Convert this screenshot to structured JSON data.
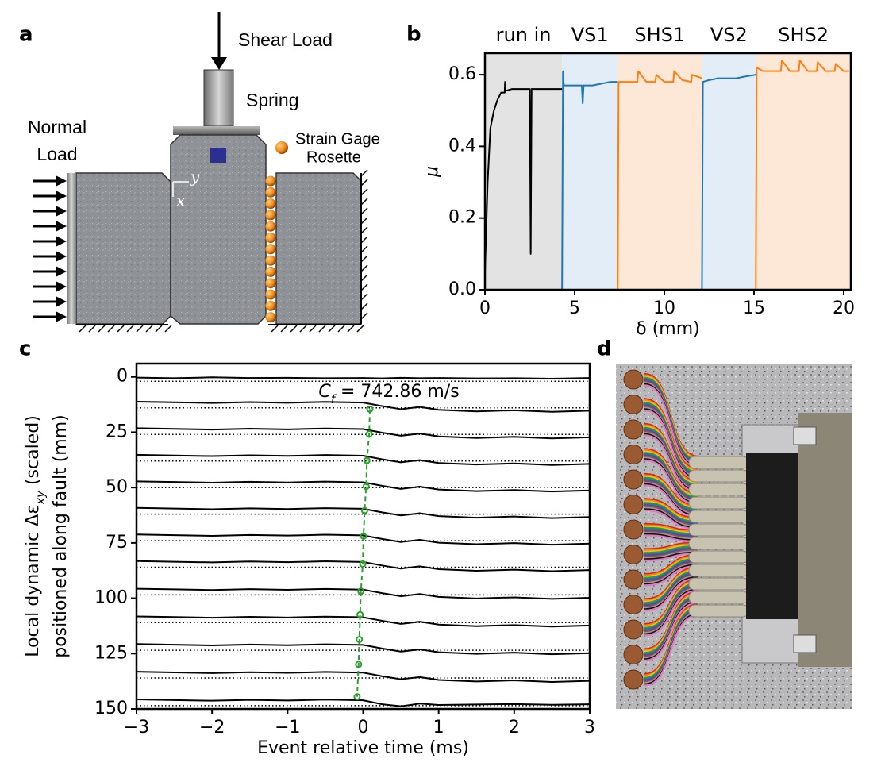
{
  "panel_labels": [
    "a",
    "b",
    "c",
    "d"
  ],
  "diagram": {
    "shear_load": "Shear Load",
    "spring": "Spring",
    "normal_load": [
      "Normal",
      "Load"
    ],
    "strain_gage": [
      "Strain Gage",
      "Rosette"
    ],
    "axis_y": "y",
    "axis_x": "x"
  },
  "chart_data": [
    {
      "type": "line",
      "xlabel": "δ (mm)",
      "ylabel": "μ",
      "xlim": [
        0,
        20.4
      ],
      "ylim": [
        0,
        0.66
      ],
      "xticks": [
        0,
        5,
        10,
        15,
        20
      ],
      "yticks": [
        {
          "value": 0,
          "label": "0.0"
        },
        0.2,
        0.4,
        0.6
      ],
      "regions": [
        {
          "name": "run in",
          "start": 0,
          "end": 4.3,
          "color": "#e3e3e3",
          "text_color": "#000000"
        },
        {
          "name": "VS1",
          "start": 4.3,
          "end": 7.4,
          "color": "#e3edf7",
          "text_color": "#1f77b4"
        },
        {
          "name": "SHS1",
          "start": 7.4,
          "end": 12.1,
          "color": "#fde8d7",
          "text_color": "#ff7f0e"
        },
        {
          "name": "VS2",
          "start": 12.1,
          "end": 15.1,
          "color": "#e3edf7",
          "text_color": "#1f77b4"
        },
        {
          "name": "SHS2",
          "start": 15.1,
          "end": 20.4,
          "color": "#fde8d7",
          "text_color": "#ff7f0e"
        }
      ],
      "series": [
        {
          "color": "#000000",
          "x": [
            0,
            0.15,
            0.3,
            0.5,
            0.7,
            0.9,
            1.1,
            1.12,
            1.15,
            1.5,
            2.0,
            2.5,
            2.55,
            2.6,
            3.0,
            3.5,
            4.0,
            4.3
          ],
          "values": [
            0.05,
            0.3,
            0.45,
            0.5,
            0.53,
            0.55,
            0.55,
            0.58,
            0.555,
            0.56,
            0.56,
            0.56,
            0.1,
            0.56,
            0.56,
            0.56,
            0.56,
            0.56
          ]
        },
        {
          "color": "#1f77b4",
          "x": [
            4.3,
            4.35,
            4.4,
            5.0,
            5.4,
            5.45,
            5.5,
            6.0,
            6.5,
            7.0,
            7.4
          ],
          "values": [
            0.0,
            0.61,
            0.57,
            0.57,
            0.57,
            0.52,
            0.57,
            0.57,
            0.575,
            0.58,
            0.58
          ]
        },
        {
          "color": "#ff7f0e",
          "x": [
            7.4,
            7.45,
            7.6,
            8.0,
            8.5,
            8.55,
            9.0,
            9.5,
            9.55,
            10.0,
            10.5,
            10.55,
            11.0,
            11.5,
            11.55,
            12.1
          ],
          "values": [
            0.0,
            0.58,
            0.58,
            0.58,
            0.58,
            0.61,
            0.58,
            0.58,
            0.6,
            0.58,
            0.58,
            0.61,
            0.585,
            0.58,
            0.6,
            0.59
          ]
        },
        {
          "color": "#1f77b4",
          "x": [
            12.1,
            12.15,
            12.5,
            13.0,
            13.5,
            14.0,
            14.5,
            15.1
          ],
          "values": [
            0.0,
            0.58,
            0.585,
            0.59,
            0.59,
            0.59,
            0.595,
            0.6
          ]
        },
        {
          "color": "#ff7f0e",
          "x": [
            15.1,
            15.15,
            15.5,
            16.0,
            16.5,
            16.55,
            17.0,
            17.5,
            17.55,
            18.0,
            18.5,
            18.55,
            19.0,
            19.5,
            19.55,
            20.0,
            20.3
          ],
          "values": [
            0.0,
            0.62,
            0.61,
            0.61,
            0.61,
            0.64,
            0.61,
            0.61,
            0.64,
            0.61,
            0.61,
            0.635,
            0.61,
            0.61,
            0.63,
            0.61,
            0.61
          ]
        }
      ]
    },
    {
      "type": "line",
      "xlabel": "Event relative time (ms)",
      "ylabel": {
        "main": "Local dynamic Δε",
        "sub": "xy",
        "rest": " (scaled)",
        "line2": "positioned along fault (mm)"
      },
      "xlim": [
        -3,
        3
      ],
      "ylim": [
        150,
        -6
      ],
      "xticks": [
        {
          "value": -3,
          "label": "−3"
        },
        {
          "value": -2,
          "label": "−2"
        },
        {
          "value": -1,
          "label": "−1"
        },
        0,
        1,
        2,
        3
      ],
      "yticks": [
        0,
        25,
        50,
        75,
        100,
        125,
        150
      ],
      "color": "#000000",
      "baselines": [
        2,
        14,
        26,
        38,
        50,
        62,
        74,
        86,
        98.5,
        111,
        123.5,
        136,
        148.5
      ],
      "x": [
        -3,
        -2.5,
        -2,
        -1.5,
        -1,
        -0.5,
        0,
        0.25,
        0.5,
        0.75,
        1,
        1.5,
        2,
        2.5,
        3
      ],
      "series": [
        {
          "values": [
            0.3,
            0.6,
            0.2,
            0.5,
            0.4,
            0.6,
            0.5,
            0.7,
            0.4,
            0.6,
            0.5,
            0.7,
            0.6,
            0.8,
            0.5
          ]
        },
        {
          "values": [
            11.2,
            11.5,
            11.8,
            11.4,
            11.7,
            11.3,
            11.6,
            13.2,
            14.6,
            13.6,
            14.9,
            15.6,
            15.1,
            15.8,
            15.3
          ]
        },
        {
          "values": [
            23.2,
            23.5,
            23.8,
            23.4,
            23.7,
            23.3,
            23.6,
            25.2,
            26.6,
            25.6,
            26.9,
            27.6,
            27.1,
            27.8,
            27.3
          ]
        },
        {
          "values": [
            35.2,
            35.5,
            35.8,
            35.4,
            35.7,
            35.3,
            35.6,
            37.2,
            38.6,
            37.6,
            38.9,
            39.6,
            39.1,
            39.8,
            39.3
          ]
        },
        {
          "values": [
            47.2,
            47.5,
            47.8,
            47.4,
            47.7,
            47.3,
            47.6,
            49.2,
            50.6,
            49.6,
            50.9,
            51.6,
            51.1,
            51.8,
            51.3
          ]
        },
        {
          "values": [
            59.2,
            59.5,
            59.8,
            59.4,
            59.7,
            59.3,
            59.6,
            61.2,
            62.6,
            61.6,
            62.9,
            63.6,
            63.1,
            63.8,
            63.3
          ]
        },
        {
          "values": [
            71.2,
            71.5,
            71.8,
            71.4,
            71.7,
            71.3,
            71.6,
            73.2,
            74.6,
            73.6,
            74.9,
            75.6,
            75.1,
            75.8,
            75.3
          ]
        },
        {
          "values": [
            83.2,
            83.5,
            83.8,
            83.4,
            83.7,
            83.3,
            83.6,
            85.2,
            86.6,
            85.6,
            86.9,
            87.6,
            87.1,
            87.8,
            87.3
          ]
        },
        {
          "values": [
            95.7,
            96.0,
            96.3,
            95.9,
            96.2,
            95.8,
            96.1,
            97.7,
            99.1,
            98.1,
            99.4,
            100.1,
            99.6,
            100.3,
            99.8
          ]
        },
        {
          "values": [
            108.2,
            108.5,
            108.8,
            108.4,
            108.7,
            108.3,
            108.6,
            110.2,
            111.6,
            110.6,
            111.9,
            112.6,
            112.1,
            112.8,
            112.3
          ]
        },
        {
          "values": [
            120.7,
            121.0,
            121.3,
            120.9,
            121.2,
            120.8,
            121.1,
            122.7,
            124.1,
            123.1,
            124.4,
            125.1,
            124.6,
            125.3,
            124.8
          ]
        },
        {
          "values": [
            133.2,
            133.5,
            133.8,
            133.4,
            133.7,
            133.3,
            133.6,
            135.2,
            136.6,
            135.6,
            136.9,
            137.6,
            137.1,
            137.8,
            137.3
          ]
        },
        {
          "values": [
            145.7,
            146.0,
            146.3,
            145.9,
            146.2,
            145.8,
            146.1,
            147.9,
            148.8,
            147.6,
            148.2,
            148.0,
            147.8,
            148.1,
            147.9
          ]
        }
      ],
      "picks": {
        "color": "#2ca02c",
        "x": [
          0.09,
          0.08,
          0.05,
          0.04,
          0.02,
          0.005,
          -0.005,
          -0.03,
          -0.04,
          -0.05,
          -0.06,
          -0.08
        ],
        "y": [
          14.6,
          25.8,
          37.8,
          49.5,
          60.4,
          72,
          84.5,
          96.8,
          107.4,
          118.6,
          129.9,
          144.5
        ]
      },
      "annotation": {
        "main": "C",
        "sub": "f",
        "rest": " = 742.86 m/s"
      }
    }
  ]
}
